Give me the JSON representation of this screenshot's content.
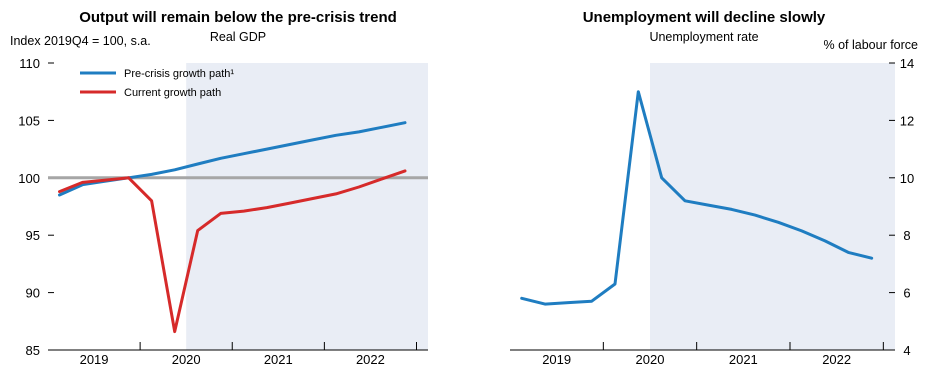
{
  "panels": [
    {
      "title": "Output will remain below the pre-crisis trend",
      "subtitle": "Real GDP",
      "unit_label": "Index 2019Q4 = 100, s.a."
    },
    {
      "title": "Unemployment will decline slowly",
      "subtitle": "Unemployment rate",
      "unit_label": "% of labour force"
    }
  ],
  "chart_data": [
    {
      "type": "line",
      "title": "Output will remain below the pre-crisis trend",
      "subtitle": "Real GDP",
      "ylabel": "Index 2019Q4 = 100, s.a.",
      "ylim": [
        85,
        110
      ],
      "yticks": [
        85,
        90,
        95,
        100,
        105,
        110
      ],
      "x_periods": [
        "2019Q1",
        "2019Q2",
        "2019Q3",
        "2019Q4",
        "2020Q1",
        "2020Q2",
        "2020Q3",
        "2020Q4",
        "2021Q1",
        "2021Q2",
        "2021Q3",
        "2021Q4",
        "2022Q1",
        "2022Q2",
        "2022Q3",
        "2022Q4"
      ],
      "x_year_labels": [
        "2019",
        "2020",
        "2021",
        "2022"
      ],
      "projection_shaded_from": "2020Q3",
      "reference_line": 100,
      "legend_position": "top-left",
      "series": [
        {
          "name": "Pre-crisis growth path¹",
          "color": "#1f7dc1",
          "values": [
            98.5,
            99.4,
            99.7,
            100.0,
            100.3,
            100.7,
            101.2,
            101.7,
            102.1,
            102.5,
            102.9,
            103.3,
            103.7,
            104.0,
            104.4,
            104.8
          ]
        },
        {
          "name": "Current growth path",
          "color": "#d62a2a",
          "values": [
            98.8,
            99.6,
            99.8,
            100.0,
            98.0,
            86.6,
            95.4,
            96.9,
            97.1,
            97.4,
            97.8,
            98.2,
            98.6,
            99.2,
            99.9,
            100.6
          ]
        }
      ]
    },
    {
      "type": "line",
      "title": "Unemployment will decline slowly",
      "subtitle": "Unemployment rate",
      "ylabel": "% of labour force",
      "ylim": [
        4,
        14
      ],
      "yticks": [
        4,
        6,
        8,
        10,
        12,
        14
      ],
      "x_periods": [
        "2019Q1",
        "2019Q2",
        "2019Q3",
        "2019Q4",
        "2020Q1",
        "2020Q2",
        "2020Q3",
        "2020Q4",
        "2021Q1",
        "2021Q2",
        "2021Q3",
        "2021Q4",
        "2022Q1",
        "2022Q2",
        "2022Q3",
        "2022Q4"
      ],
      "x_year_labels": [
        "2019",
        "2020",
        "2021",
        "2022"
      ],
      "projection_shaded_from": "2020Q3",
      "series": [
        {
          "name": "",
          "color": "#1f7dc1",
          "values": [
            5.8,
            5.6,
            5.65,
            5.7,
            6.3,
            13.0,
            10.0,
            9.2,
            9.05,
            8.9,
            8.7,
            8.45,
            8.15,
            7.8,
            7.4,
            7.2
          ]
        }
      ]
    }
  ],
  "colors": {
    "shade": "#e9edf5",
    "reference_line": "#a6a6a6",
    "axis": "#000000"
  }
}
